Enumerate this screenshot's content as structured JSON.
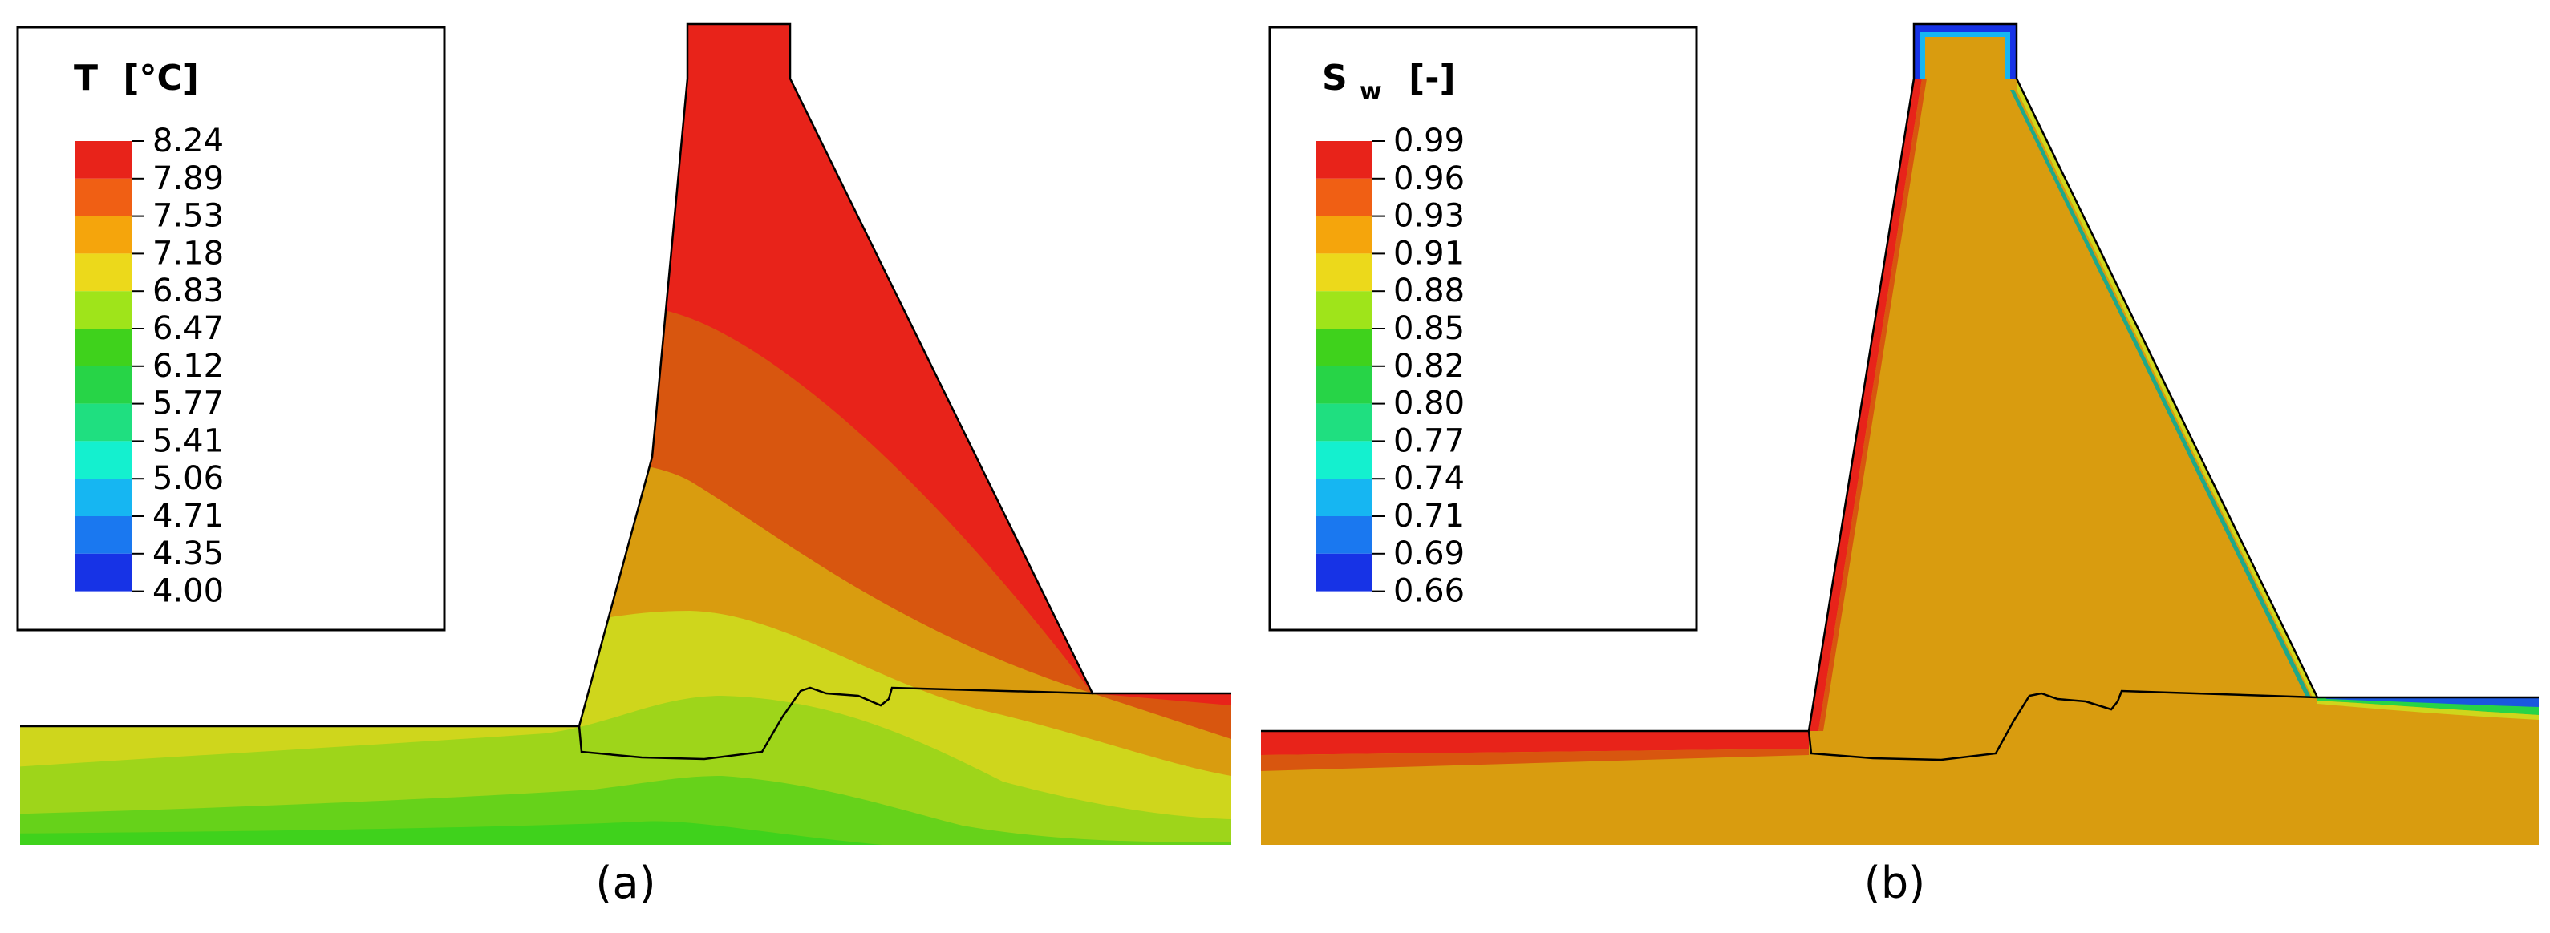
{
  "panels": [
    {
      "caption": "(a)",
      "legend": {
        "title_symbol": "T",
        "title_subscript": "",
        "title_unit": "[°C]",
        "levels": [
          "8.24",
          "7.89",
          "7.53",
          "7.18",
          "6.83",
          "6.47",
          "6.12",
          "5.77",
          "5.41",
          "5.06",
          "4.71",
          "4.35",
          "4.00"
        ]
      }
    },
    {
      "caption": "(b)",
      "legend": {
        "title_symbol": "S",
        "title_subscript": "w",
        "title_unit": "[-]",
        "levels": [
          "0.99",
          "0.96",
          "0.93",
          "0.91",
          "0.88",
          "0.85",
          "0.82",
          "0.80",
          "0.77",
          "0.74",
          "0.71",
          "0.69",
          "0.66"
        ]
      }
    }
  ],
  "colors": {
    "scale": [
      "#e8231a",
      "#f05f14",
      "#f5a50c",
      "#ecd91b",
      "#9fe41a",
      "#3fd21c",
      "#27d447",
      "#1fdf80",
      "#14f0cf",
      "#16b6f2",
      "#1a78f0",
      "#1733e6"
    ],
    "outline": "#000000",
    "background": "#ffffff"
  }
}
